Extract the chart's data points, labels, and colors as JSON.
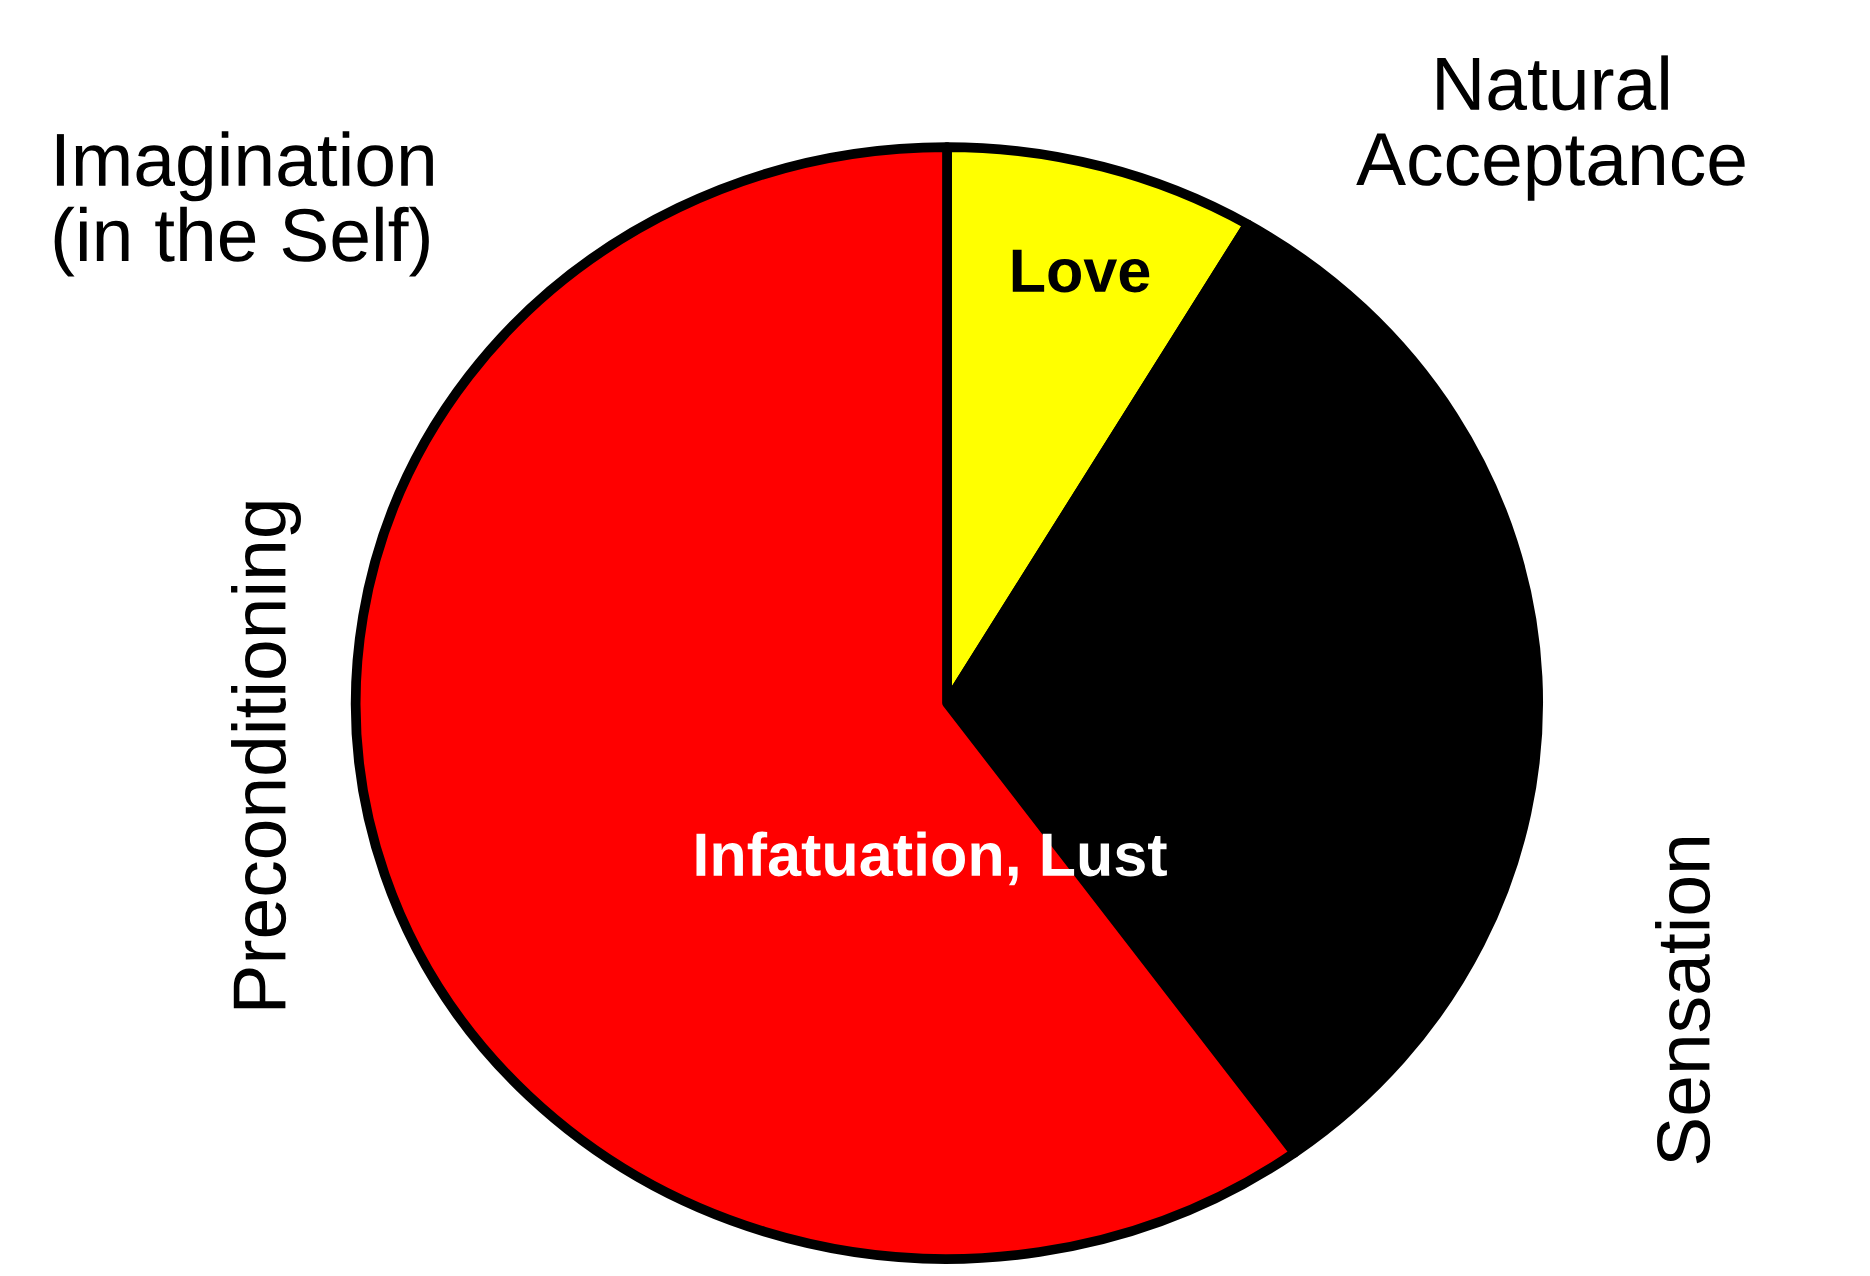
{
  "chart_data": {
    "type": "pie",
    "categories": [
      "Love",
      null,
      "Infatuation, Lust"
    ],
    "values": [
      8.5,
      31.5,
      60
    ],
    "colors": [
      "#ffff00",
      "#000000",
      "#ff0000"
    ],
    "annotations": [
      "Imagination\n(in the Self)",
      "Natural\nAcceptance",
      "Preconditioning",
      "Sensation"
    ]
  }
}
